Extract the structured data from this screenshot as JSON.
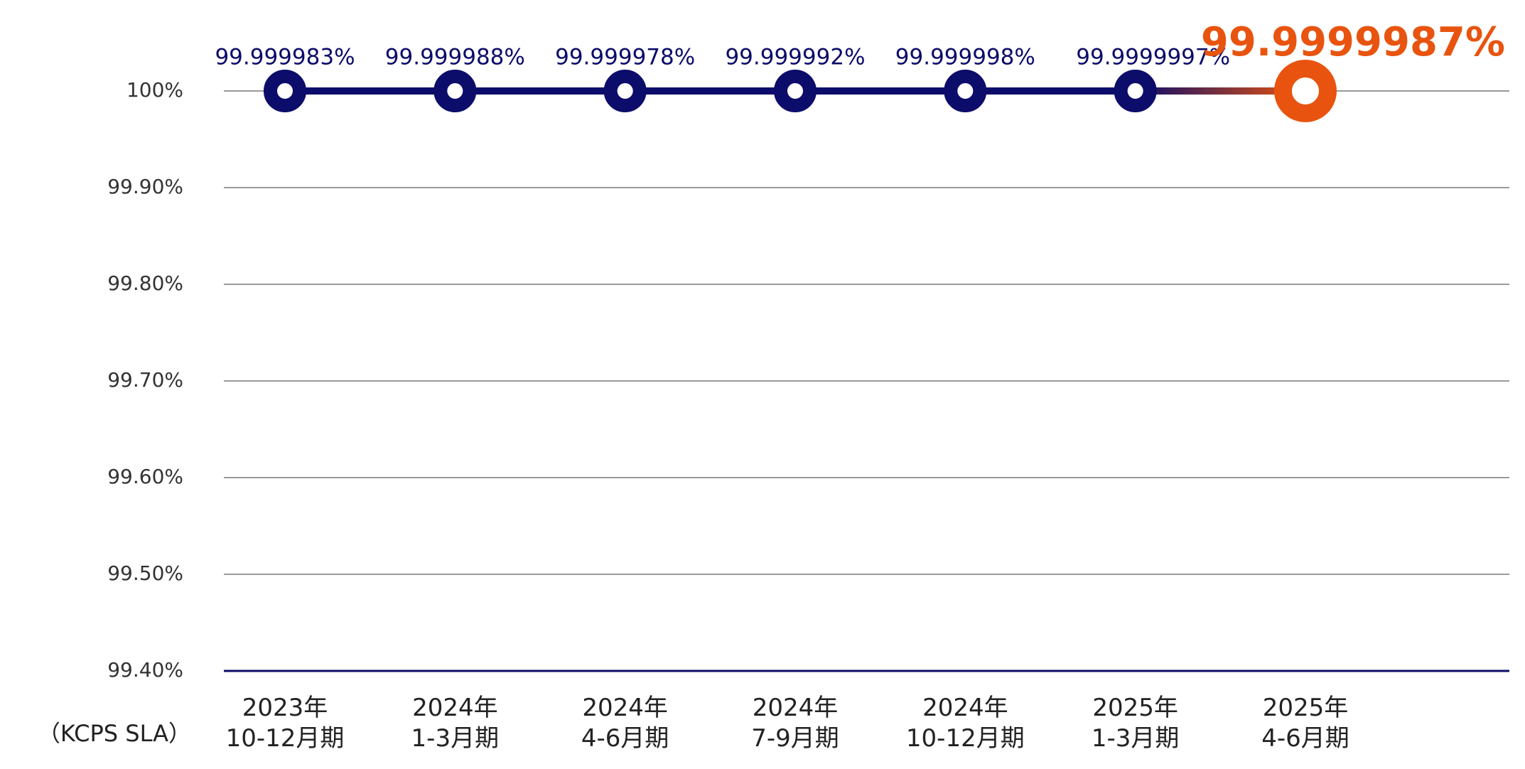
{
  "chart_data": {
    "type": "line",
    "x_label": "（KCPS SLA）",
    "categories": [
      "2023年\n10-12月期",
      "2024年\n1-3月期",
      "2024年\n4-6月期",
      "2024年\n7-9月期",
      "2024年\n10-12月期",
      "2025年\n1-3月期",
      "2025年\n4-6月期"
    ],
    "series": [
      {
        "color": "#0c0c6a",
        "values": [
          99.999983,
          99.999988,
          99.999978,
          99.999992,
          99.999998,
          99.9999997,
          99.9999987
        ],
        "value_labels": [
          "99.999983%",
          "99.999988%",
          "99.999978%",
          "99.999992%",
          "99.999998%",
          "99.9999997%",
          "99.9999987%"
        ],
        "point_colors": [
          "#0c0c6a",
          "#0c0c6a",
          "#0c0c6a",
          "#0c0c6a",
          "#0c0c6a",
          "#0c0c6a",
          "#e8540f"
        ]
      }
    ],
    "ylim": [
      99.4,
      100
    ],
    "yticks": [
      {
        "value": 99.4,
        "label": "99.40%"
      },
      {
        "value": 99.5,
        "label": "99.50%"
      },
      {
        "value": 99.6,
        "label": "99.60%"
      },
      {
        "value": 99.7,
        "label": "99.70%"
      },
      {
        "value": 99.8,
        "label": "99.80%"
      },
      {
        "value": 99.9,
        "label": "99.90%"
      },
      {
        "value": 100,
        "label": "100%"
      }
    ],
    "grid": true
  }
}
